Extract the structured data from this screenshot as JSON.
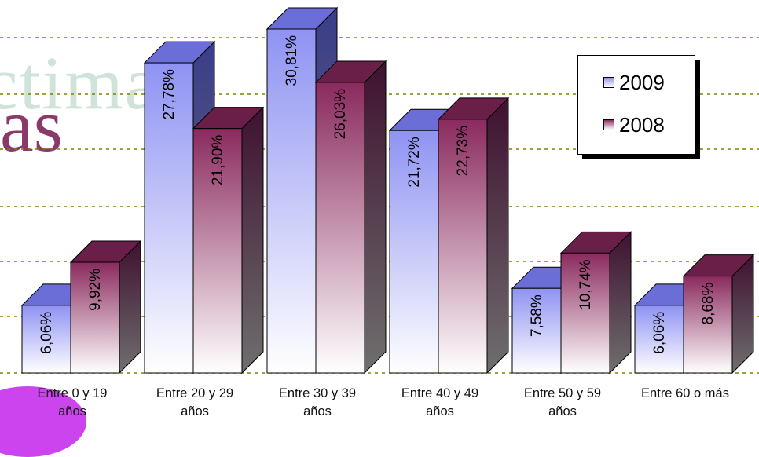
{
  "chart_data": {
    "type": "bar",
    "categories": [
      [
        "Entre 0 y 19",
        "años"
      ],
      [
        "Entre 20 y 29",
        "años"
      ],
      [
        "Entre 30 y 39",
        "años"
      ],
      [
        "Entre 40 y 49",
        "años"
      ],
      [
        "Entre 50 y 59",
        "años"
      ],
      [
        "Entre 60 o más"
      ]
    ],
    "series": [
      {
        "name": "2009",
        "values": [
          6.06,
          27.78,
          30.81,
          21.72,
          7.58,
          6.06
        ],
        "labels": [
          "6,06%",
          "27,78%",
          "30,81%",
          "21,72%",
          "7,58%",
          "6,06%"
        ],
        "color": "#8f93f2"
      },
      {
        "name": "2008",
        "values": [
          9.92,
          21.9,
          26.03,
          22.73,
          10.74,
          8.68
        ],
        "labels": [
          "9,92%",
          "21,90%",
          "26,03%",
          "22,73%",
          "10,74%",
          "8,68%"
        ],
        "color": "#8a2a5e"
      }
    ],
    "ylim": [
      0,
      35
    ],
    "grid": true,
    "legend_position": "top-right",
    "style": "3d-bar"
  },
  "background_text": {
    "top": "ctimas",
    "bottom": "nas"
  }
}
